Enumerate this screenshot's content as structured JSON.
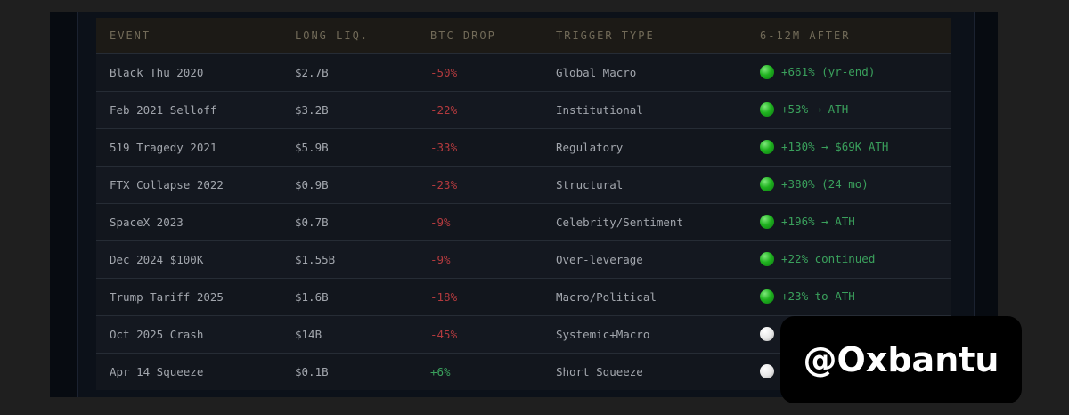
{
  "table": {
    "headers": [
      "EVENT",
      "LONG LIQ.",
      "BTC DROP",
      "TRIGGER TYPE",
      "6-12M AFTER"
    ],
    "rows": [
      {
        "event": "Black Thu 2020",
        "long_liq": "$2.7B",
        "btc_drop": "-50%",
        "trigger": "Global Macro",
        "after": "+661% (yr-end)",
        "status": "green"
      },
      {
        "event": "Feb 2021 Selloff",
        "long_liq": "$3.2B",
        "btc_drop": "-22%",
        "trigger": "Institutional",
        "after": "+53% → ATH",
        "status": "green"
      },
      {
        "event": "519 Tragedy 2021",
        "long_liq": "$5.9B",
        "btc_drop": "-33%",
        "trigger": "Regulatory",
        "after": "+130% → $69K ATH",
        "status": "green"
      },
      {
        "event": "FTX Collapse 2022",
        "long_liq": "$0.9B",
        "btc_drop": "-23%",
        "trigger": "Structural",
        "after": "+380% (24 mo)",
        "status": "green"
      },
      {
        "event": "SpaceX 2023",
        "long_liq": "$0.7B",
        "btc_drop": "-9%",
        "trigger": "Celebrity/Sentiment",
        "after": "+196% → ATH",
        "status": "green"
      },
      {
        "event": "Dec 2024 $100K",
        "long_liq": "$1.55B",
        "btc_drop": "-9%",
        "trigger": "Over-leverage",
        "after": "+22% continued",
        "status": "green"
      },
      {
        "event": "Trump Tariff 2025",
        "long_liq": "$1.6B",
        "btc_drop": "-18%",
        "trigger": "Macro/Political",
        "after": "+23% to ATH",
        "status": "green"
      },
      {
        "event": "Oct 2025 Crash",
        "long_liq": "$14B",
        "btc_drop": "-45%",
        "trigger": "Systemic+Macro",
        "after": "",
        "status": "white"
      },
      {
        "event": "Apr 14 Squeeze",
        "long_liq": "$0.1B",
        "btc_drop": "+6%",
        "trigger": "Short Squeeze",
        "after": "",
        "status": "white"
      }
    ]
  },
  "watermark": "@Oxbantu",
  "colors": {
    "negative": "#b33a3e",
    "positive": "#3aa05c",
    "header_text": "#716a58",
    "status_green": "#1fb21f",
    "status_white": "#e6e6e6"
  }
}
